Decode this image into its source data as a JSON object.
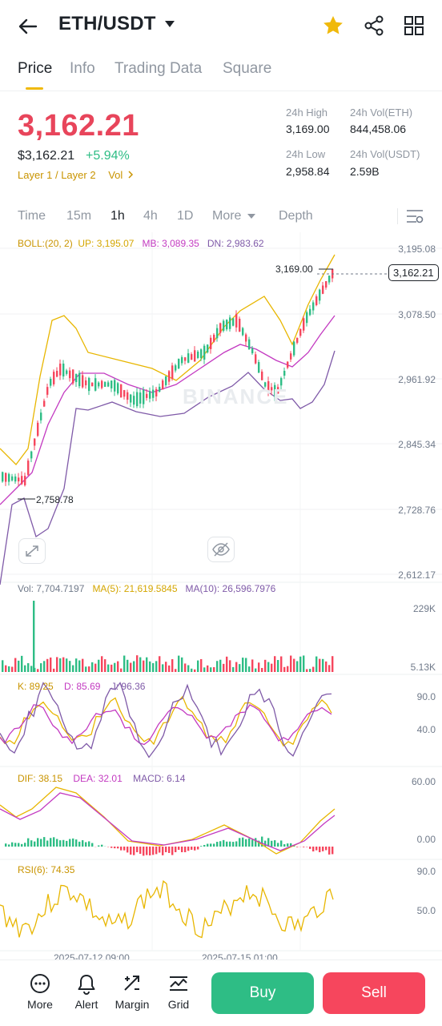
{
  "header": {
    "pair": "ETH/USDT",
    "icons": [
      "back-arrow-icon",
      "chevron-down-icon",
      "star-icon",
      "share-icon",
      "grid-icon"
    ],
    "star_color": "#f0b90b"
  },
  "tabs": [
    {
      "label": "Price",
      "active": true
    },
    {
      "label": "Info",
      "active": false
    },
    {
      "label": "Trading Data",
      "active": false
    },
    {
      "label": "Square",
      "active": false
    }
  ],
  "price": {
    "last": "3,162.21",
    "usd": "$3,162.21",
    "change_pct": "+5.94%",
    "tags": "Layer 1 / Layer 2",
    "vol_link": "Vol",
    "color_down": "#e8455b",
    "color_up": "#2ebd85"
  },
  "stats": {
    "high_label": "24h High",
    "high": "3,169.00",
    "vol_eth_label": "24h Vol(ETH)",
    "vol_eth": "844,458.06",
    "low_label": "24h Low",
    "low": "2,958.84",
    "vol_usdt_label": "24h Vol(USDT)",
    "vol_usdt": "2.59B"
  },
  "intervals": [
    {
      "label": "Time",
      "active": false
    },
    {
      "label": "15m",
      "active": false
    },
    {
      "label": "1h",
      "active": true
    },
    {
      "label": "4h",
      "active": false
    },
    {
      "label": "1D",
      "active": false
    },
    {
      "label": "More",
      "active": false
    },
    {
      "label": "Depth",
      "active": false
    }
  ],
  "boll": {
    "name": "BOLL:(20, 2)",
    "up": "UP: 3,195.07",
    "mb": "MB: 3,089.35",
    "dn": "DN: 2,983.62"
  },
  "price_axis": [
    "3,195.08",
    "3,078.50",
    "2,961.92",
    "2,845.34",
    "2,728.76",
    "2,612.17"
  ],
  "chart_marks": {
    "high_label": "3,169.00",
    "low_label": "2,758.78",
    "last_tag": "3,162.21",
    "watermark": "BINANCE"
  },
  "volume": {
    "vol": "Vol: 7,704.7197",
    "ma5": "MA(5): 21,619.5845",
    "ma10": "MA(10): 26,596.7976",
    "axis_top": "229K",
    "axis_bottom": "5.13K"
  },
  "kdj": {
    "k": "K: 89.25",
    "d": "D: 85.69",
    "j": "J: 96.36",
    "axis_top": "90.0",
    "axis_mid": "40.0"
  },
  "macd": {
    "dif": "DIF: 38.15",
    "dea": "DEA: 32.01",
    "macd": "MACD: 6.14",
    "axis_top": "60.00",
    "axis_mid": "0.00"
  },
  "rsi": {
    "name": "RSI(6): 74.35",
    "axis_top": "90.0",
    "axis_mid": "50.0"
  },
  "time_axis": [
    "2025-07-12 09:00",
    "2025-07-15 01:00"
  ],
  "bottom_bar": {
    "items": [
      {
        "label": "More",
        "icon": "more-dots-icon"
      },
      {
        "label": "Alert",
        "icon": "bell-icon"
      },
      {
        "label": "Margin",
        "icon": "margin-icon"
      },
      {
        "label": "Grid",
        "icon": "grid-chart-icon"
      }
    ],
    "buy": "Buy",
    "sell": "Sell",
    "buy_color": "#2ebd85",
    "sell_color": "#f6465d"
  }
}
